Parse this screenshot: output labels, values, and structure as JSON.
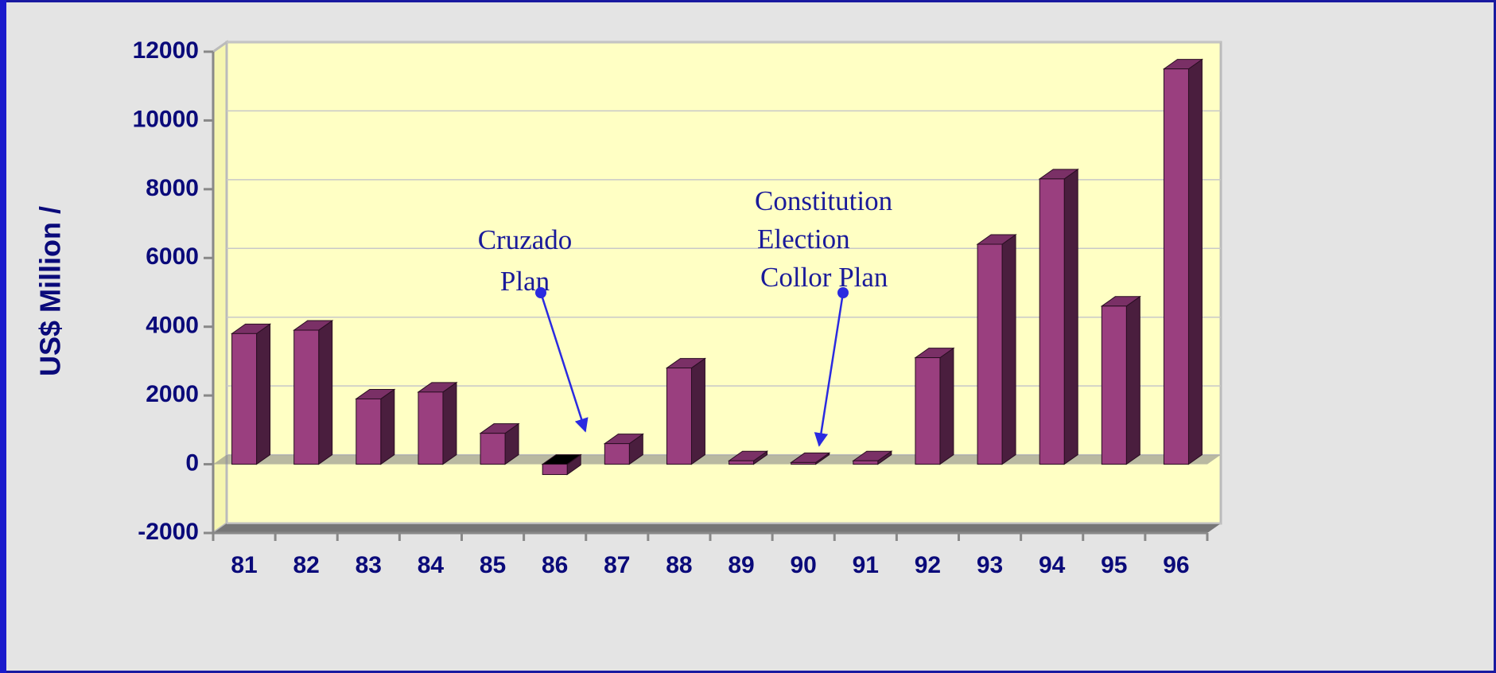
{
  "chart_data": {
    "type": "bar",
    "y_label": "US$ Million /",
    "categories": [
      "81",
      "82",
      "83",
      "84",
      "85",
      "86",
      "87",
      "88",
      "89",
      "90",
      "91",
      "92",
      "93",
      "94",
      "95",
      "96"
    ],
    "values": [
      3800,
      3900,
      1900,
      2100,
      900,
      -300,
      600,
      2800,
      100,
      50,
      100,
      3100,
      6400,
      8300,
      4600,
      11500
    ],
    "color": "#9a3f7f",
    "ylim": [
      -2000,
      12000
    ],
    "yticks": [
      -2000,
      0,
      2000,
      4000,
      6000,
      8000,
      10000,
      12000
    ],
    "grid": true,
    "annotations": [
      {
        "lines": [
          "Cruzado",
          "Plan"
        ]
      },
      {
        "lines": [
          "Constitution",
          "Election",
          "Collor Plan"
        ]
      }
    ]
  }
}
